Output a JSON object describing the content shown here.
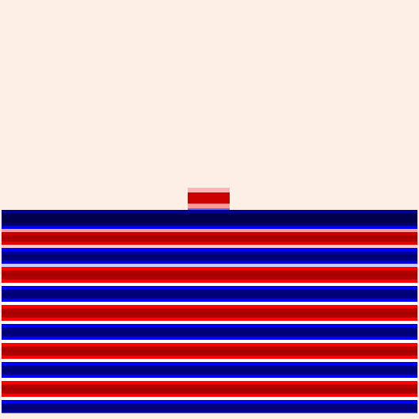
{
  "chart_data": {
    "type": "heatmap",
    "tick_labels": false,
    "xlim": [
      0,
      529
    ],
    "ylim": [
      0,
      529
    ],
    "zlim": [
      -1,
      1
    ],
    "cells": [
      [
        237,
        290,
        237,
        243,
        0.15
      ],
      [
        237,
        290,
        243,
        257,
        0.7
      ],
      [
        237,
        290,
        257,
        263,
        0.2
      ],
      [
        237,
        290,
        263,
        265,
        -0.3
      ],
      [
        2,
        527,
        265,
        269,
        -0.8
      ],
      [
        2,
        527,
        269,
        273,
        -1
      ],
      [
        2,
        527,
        273,
        277,
        -1
      ],
      [
        2,
        527,
        277,
        281,
        -1
      ],
      [
        2,
        527,
        281,
        285,
        -0.9
      ],
      [
        2,
        527,
        285,
        289,
        -0.5
      ],
      [
        2,
        527,
        289,
        293,
        0.2
      ],
      [
        2,
        527,
        293,
        297,
        0.7
      ],
      [
        2,
        527,
        297,
        301,
        0.85
      ],
      [
        2,
        527,
        301,
        305,
        0.8
      ],
      [
        2,
        527,
        305,
        309,
        0.6
      ],
      [
        2,
        527,
        309,
        313,
        0.1
      ],
      [
        2,
        527,
        313,
        317,
        -0.5
      ],
      [
        2,
        527,
        317,
        321,
        -0.8
      ],
      [
        2,
        527,
        321,
        325,
        -0.9
      ],
      [
        2,
        527,
        325,
        329,
        -0.85
      ],
      [
        2,
        527,
        329,
        333,
        -0.6
      ],
      [
        2,
        527,
        333,
        337,
        -0.1
      ],
      [
        2,
        527,
        337,
        341,
        0.5
      ],
      [
        2,
        527,
        341,
        345,
        0.8
      ],
      [
        2,
        527,
        345,
        349,
        0.85
      ],
      [
        2,
        527,
        349,
        353,
        0.8
      ],
      [
        2,
        527,
        353,
        357,
        0.5
      ],
      [
        2,
        527,
        357,
        361,
        0.0
      ],
      [
        2,
        527,
        361,
        365,
        -0.5
      ],
      [
        2,
        527,
        365,
        369,
        -0.85
      ],
      [
        2,
        527,
        369,
        373,
        -0.9
      ],
      [
        2,
        527,
        373,
        377,
        -0.85
      ],
      [
        2,
        527,
        377,
        381,
        -0.5
      ],
      [
        2,
        527,
        381,
        385,
        0.0
      ],
      [
        2,
        527,
        385,
        389,
        0.5
      ],
      [
        2,
        527,
        389,
        393,
        0.8
      ],
      [
        2,
        527,
        393,
        397,
        0.85
      ],
      [
        2,
        527,
        397,
        401,
        0.8
      ],
      [
        2,
        527,
        401,
        405,
        0.5
      ],
      [
        2,
        527,
        405,
        409,
        0.0
      ],
      [
        2,
        527,
        409,
        413,
        -0.5
      ],
      [
        2,
        527,
        413,
        417,
        -0.85
      ],
      [
        2,
        527,
        417,
        421,
        -0.9
      ],
      [
        2,
        527,
        421,
        425,
        -0.85
      ],
      [
        2,
        527,
        425,
        429,
        -0.5
      ],
      [
        2,
        527,
        429,
        433,
        0.0
      ],
      [
        2,
        527,
        433,
        437,
        0.5
      ],
      [
        2,
        527,
        437,
        441,
        0.8
      ],
      [
        2,
        527,
        441,
        445,
        0.85
      ],
      [
        2,
        527,
        445,
        449,
        0.8
      ],
      [
        2,
        527,
        449,
        453,
        0.5
      ],
      [
        2,
        527,
        453,
        457,
        0.0
      ],
      [
        2,
        527,
        457,
        461,
        -0.5
      ],
      [
        2,
        527,
        461,
        465,
        -0.85
      ],
      [
        2,
        527,
        465,
        469,
        -0.9
      ],
      [
        2,
        527,
        469,
        473,
        -0.85
      ],
      [
        2,
        527,
        473,
        477,
        -0.5
      ],
      [
        2,
        527,
        477,
        481,
        0.0
      ],
      [
        2,
        527,
        481,
        485,
        0.5
      ],
      [
        2,
        527,
        485,
        489,
        0.8
      ],
      [
        2,
        527,
        489,
        493,
        0.85
      ],
      [
        2,
        527,
        493,
        497,
        0.8
      ],
      [
        2,
        527,
        497,
        501,
        0.5
      ],
      [
        2,
        527,
        501,
        505,
        0.0
      ],
      [
        2,
        527,
        505,
        509,
        -0.5
      ],
      [
        2,
        527,
        509,
        513,
        -0.85
      ],
      [
        2,
        527,
        513,
        517,
        -0.9
      ],
      [
        2,
        527,
        517,
        521,
        -0.8
      ]
    ]
  }
}
